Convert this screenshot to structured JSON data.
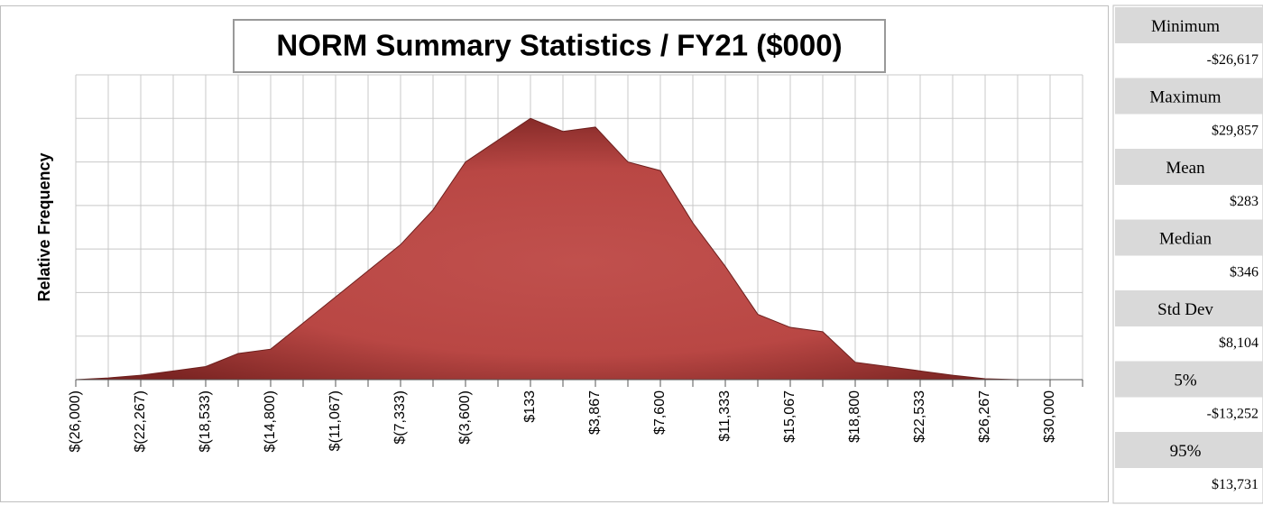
{
  "chart_data": {
    "type": "area",
    "title": "NORM Summary Statistics / FY21 ($000)",
    "y_label": "Relative Frequency",
    "categories": [
      "$(26,000)",
      null,
      "$(22,267)",
      null,
      "$(18,533)",
      null,
      "$(14,800)",
      null,
      "$(11,067)",
      null,
      "$(7,333)",
      null,
      "$(3,600)",
      null,
      "$133",
      null,
      "$3,867",
      null,
      "$7,600",
      null,
      "$11,333",
      null,
      "$15,067",
      null,
      "$18,800",
      null,
      "$22,533",
      null,
      "$26,267",
      null,
      "$30,000",
      null
    ],
    "series": [
      {
        "name": "Relative Frequency",
        "color": "#c0504d",
        "values": [
          0,
          0.04,
          0.1,
          0.2,
          0.3,
          0.6,
          0.7,
          1.3,
          1.9,
          2.5,
          3.1,
          3.9,
          5.0,
          5.5,
          6.0,
          5.7,
          5.8,
          5.0,
          4.8,
          3.6,
          2.6,
          1.5,
          1.2,
          1.1,
          0.4,
          0.3,
          0.2,
          0.1,
          0.02,
          0,
          0,
          0
        ]
      }
    ],
    "ylim": [
      0,
      7
    ],
    "yticks": [
      0,
      1,
      2,
      3,
      4,
      5,
      6,
      7
    ],
    "grid": true
  },
  "stats_panel": [
    {
      "label": "Minimum",
      "value": "-$26,617"
    },
    {
      "label": "Maximum",
      "value": "$29,857"
    },
    {
      "label": "Mean",
      "value": "$283"
    },
    {
      "label": "Median",
      "value": "$346"
    },
    {
      "label": "Std Dev",
      "value": "$8,104"
    },
    {
      "label": "5%",
      "value": "-$13,252"
    },
    {
      "label": "95%",
      "value": "$13,731"
    }
  ]
}
